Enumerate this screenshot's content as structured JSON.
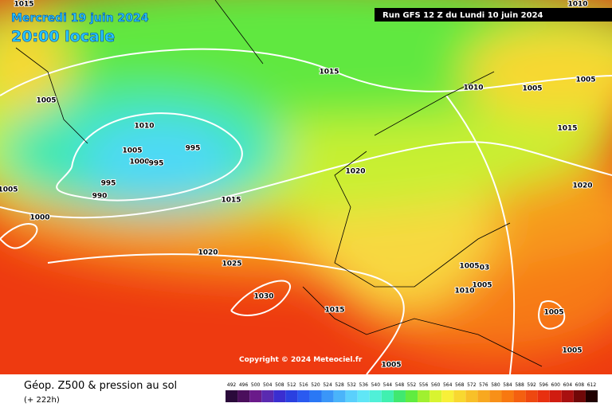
{
  "header": {
    "date": "Mercredi 19 juin 2024",
    "time": "20:00 locale",
    "run": "Run GFS 12 Z du Lundi 10 juin 2024"
  },
  "copyright": "Copyright © 2024 Meteociel.fr",
  "footer": {
    "title": "Géop. Z500 & pression au sol",
    "lead": "(+ 222h)"
  },
  "isobar_labels": [
    "1015",
    "1010",
    "1015",
    "1010",
    "1005",
    "1005",
    "1005",
    "1010",
    "1005",
    "995",
    "1000",
    "995",
    "1020",
    "1015",
    "995",
    "990",
    "1005",
    "1000",
    "1015",
    "1020",
    "1020",
    "1025",
    "1030",
    "1005",
    "03",
    "1005",
    "1010",
    "1015",
    "1005",
    "1005",
    "1005"
  ],
  "colorbar": {
    "labels": [
      "492",
      "496",
      "500",
      "504",
      "508",
      "512",
      "516",
      "520",
      "524",
      "528",
      "532",
      "536",
      "540",
      "544",
      "548",
      "552",
      "556",
      "560",
      "564",
      "568",
      "572",
      "576",
      "580",
      "584",
      "588",
      "592",
      "596",
      "600",
      "604",
      "608",
      "612"
    ],
    "colors": [
      "#2a0a3a",
      "#4b0f5c",
      "#6a1a8a",
      "#5a2ab0",
      "#3a2ed0",
      "#2a40e0",
      "#2a5af0",
      "#2a78f5",
      "#3a96f8",
      "#4ab4fa",
      "#5ad0fc",
      "#60e6f6",
      "#50f0d8",
      "#40f0b0",
      "#40e870",
      "#60ec40",
      "#a0f030",
      "#d8f430",
      "#f8f038",
      "#f8d830",
      "#f8c028",
      "#f8a820",
      "#f89018",
      "#f87810",
      "#f46010",
      "#ee4810",
      "#e83010",
      "#d01c10",
      "#a81010",
      "#700808",
      "#200000"
    ]
  }
}
